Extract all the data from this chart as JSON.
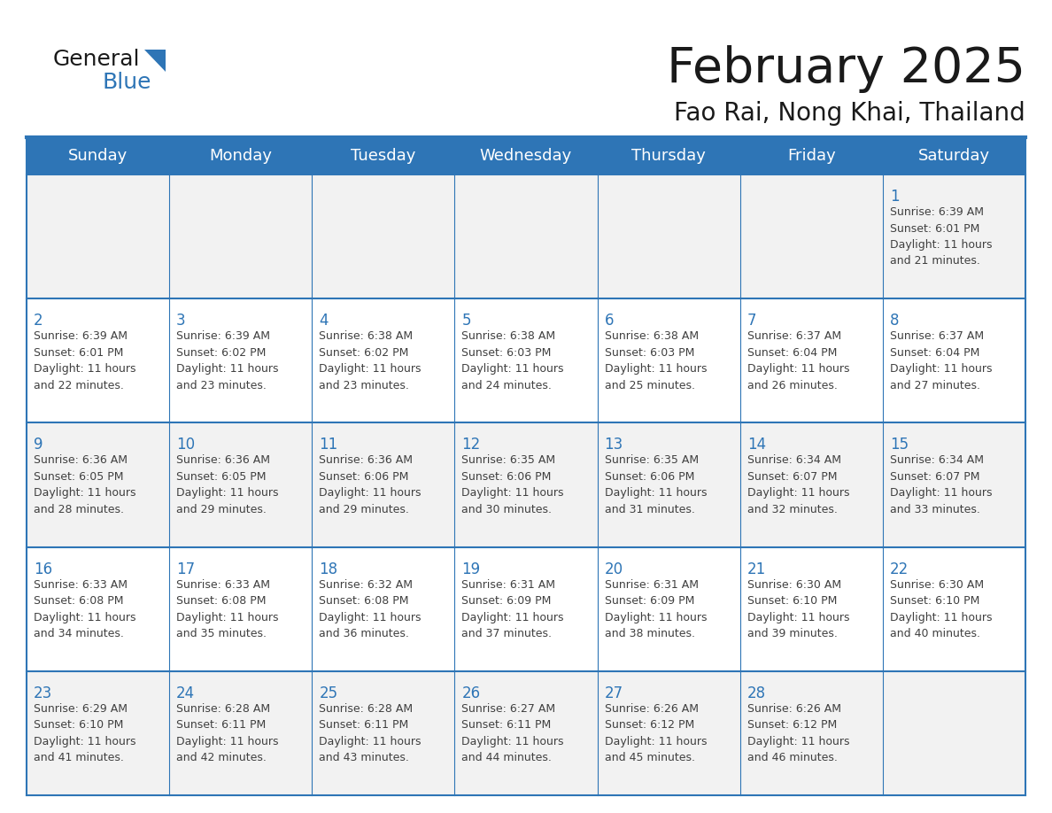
{
  "title": "February 2025",
  "subtitle": "Fao Rai, Nong Khai, Thailand",
  "header_bg": "#2E75B6",
  "header_text_color": "#FFFFFF",
  "cell_bg_odd": "#F2F2F2",
  "cell_bg_even": "#FFFFFF",
  "border_color": "#2E75B6",
  "day_number_color": "#2E75B6",
  "day_text_color": "#404040",
  "weekdays": [
    "Sunday",
    "Monday",
    "Tuesday",
    "Wednesday",
    "Thursday",
    "Friday",
    "Saturday"
  ],
  "logo_general_color": "#1a1a1a",
  "logo_blue_color": "#2E75B6",
  "calendar": [
    [
      null,
      null,
      null,
      null,
      null,
      null,
      1
    ],
    [
      2,
      3,
      4,
      5,
      6,
      7,
      8
    ],
    [
      9,
      10,
      11,
      12,
      13,
      14,
      15
    ],
    [
      16,
      17,
      18,
      19,
      20,
      21,
      22
    ],
    [
      23,
      24,
      25,
      26,
      27,
      28,
      null
    ]
  ],
  "sunrise": {
    "1": "6:39 AM",
    "2": "6:39 AM",
    "3": "6:39 AM",
    "4": "6:38 AM",
    "5": "6:38 AM",
    "6": "6:38 AM",
    "7": "6:37 AM",
    "8": "6:37 AM",
    "9": "6:36 AM",
    "10": "6:36 AM",
    "11": "6:36 AM",
    "12": "6:35 AM",
    "13": "6:35 AM",
    "14": "6:34 AM",
    "15": "6:34 AM",
    "16": "6:33 AM",
    "17": "6:33 AM",
    "18": "6:32 AM",
    "19": "6:31 AM",
    "20": "6:31 AM",
    "21": "6:30 AM",
    "22": "6:30 AM",
    "23": "6:29 AM",
    "24": "6:28 AM",
    "25": "6:28 AM",
    "26": "6:27 AM",
    "27": "6:26 AM",
    "28": "6:26 AM"
  },
  "sunset": {
    "1": "6:01 PM",
    "2": "6:01 PM",
    "3": "6:02 PM",
    "4": "6:02 PM",
    "5": "6:03 PM",
    "6": "6:03 PM",
    "7": "6:04 PM",
    "8": "6:04 PM",
    "9": "6:05 PM",
    "10": "6:05 PM",
    "11": "6:06 PM",
    "12": "6:06 PM",
    "13": "6:06 PM",
    "14": "6:07 PM",
    "15": "6:07 PM",
    "16": "6:08 PM",
    "17": "6:08 PM",
    "18": "6:08 PM",
    "19": "6:09 PM",
    "20": "6:09 PM",
    "21": "6:10 PM",
    "22": "6:10 PM",
    "23": "6:10 PM",
    "24": "6:11 PM",
    "25": "6:11 PM",
    "26": "6:11 PM",
    "27": "6:12 PM",
    "28": "6:12 PM"
  },
  "daylight": {
    "1": "11 hours and 21 minutes.",
    "2": "11 hours and 22 minutes.",
    "3": "11 hours and 23 minutes.",
    "4": "11 hours and 23 minutes.",
    "5": "11 hours and 24 minutes.",
    "6": "11 hours and 25 minutes.",
    "7": "11 hours and 26 minutes.",
    "8": "11 hours and 27 minutes.",
    "9": "11 hours and 28 minutes.",
    "10": "11 hours and 29 minutes.",
    "11": "11 hours and 29 minutes.",
    "12": "11 hours and 30 minutes.",
    "13": "11 hours and 31 minutes.",
    "14": "11 hours and 32 minutes.",
    "15": "11 hours and 33 minutes.",
    "16": "11 hours and 34 minutes.",
    "17": "11 hours and 35 minutes.",
    "18": "11 hours and 36 minutes.",
    "19": "11 hours and 37 minutes.",
    "20": "11 hours and 38 minutes.",
    "21": "11 hours and 39 minutes.",
    "22": "11 hours and 40 minutes.",
    "23": "11 hours and 41 minutes.",
    "24": "11 hours and 42 minutes.",
    "25": "11 hours and 43 minutes.",
    "26": "11 hours and 44 minutes.",
    "27": "11 hours and 45 minutes.",
    "28": "11 hours and 46 minutes."
  }
}
